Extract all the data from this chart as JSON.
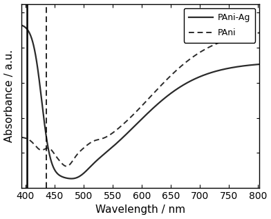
{
  "xlabel": "Wavelength / nm",
  "ylabel": "Absorbance / a.u.",
  "xlim": [
    393,
    803
  ],
  "ylim": [
    0.0,
    1.05
  ],
  "vline_solid_x": 403,
  "vline_dashed_x": 436,
  "legend_labels": [
    "PAni-Ag",
    "PAni"
  ],
  "line_color": "#2a2a2a",
  "background_color": "#ffffff",
  "axis_fontsize": 11,
  "tick_fontsize": 10,
  "xticks": [
    400,
    450,
    500,
    550,
    600,
    650,
    700,
    750,
    800
  ]
}
